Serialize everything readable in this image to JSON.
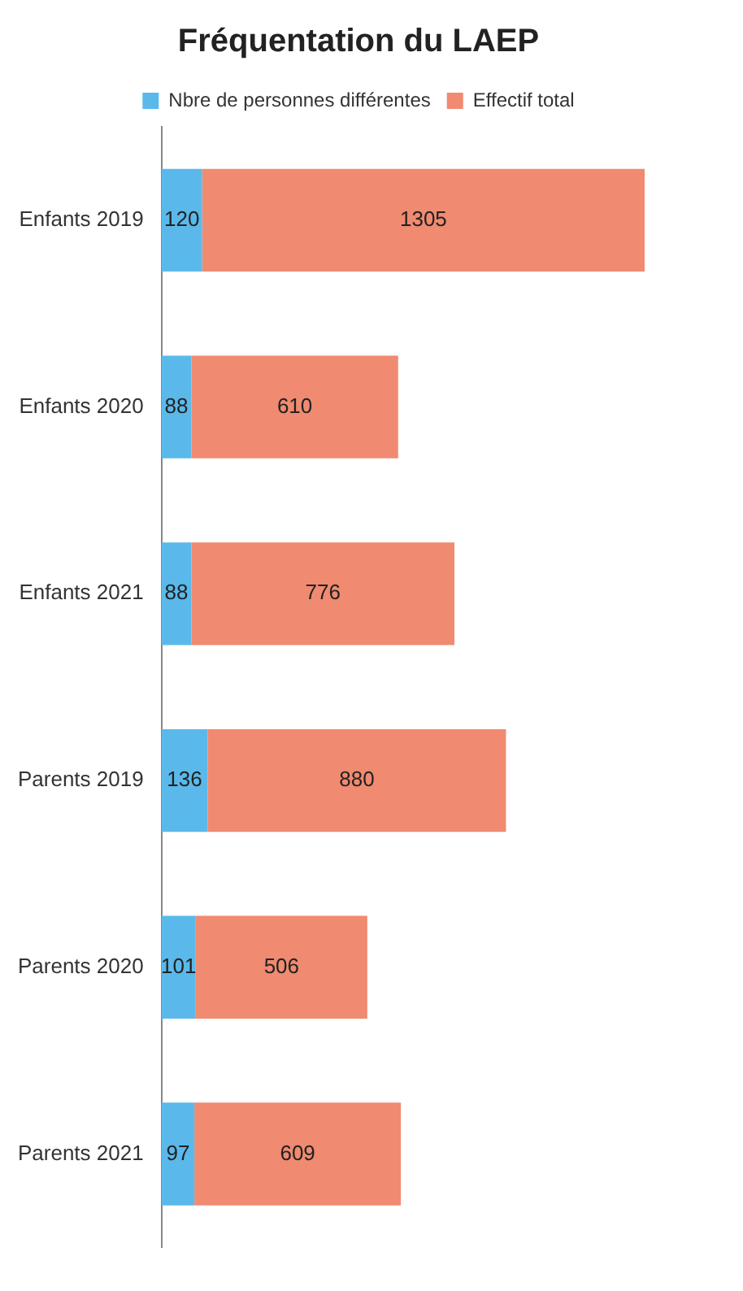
{
  "chart_data": {
    "type": "bar",
    "orientation": "horizontal",
    "stacked": true,
    "title": "Fréquentation du LAEP",
    "categories": [
      "Enfants 2019",
      "Enfants 2020",
      "Enfants 2021",
      "Parents 2019",
      "Parents 2020",
      "Parents 2021"
    ],
    "series": [
      {
        "name": "Nbre de personnes différentes",
        "color": "#5ab9ea",
        "values": [
          120,
          88,
          88,
          136,
          101,
          97
        ]
      },
      {
        "name": "Effectif total",
        "color": "#f08a70",
        "values": [
          1305,
          610,
          776,
          880,
          506,
          609
        ]
      }
    ],
    "data_labels": true,
    "legend": "top"
  }
}
